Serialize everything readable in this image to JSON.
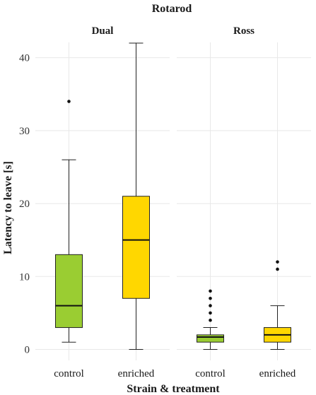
{
  "chart_data": {
    "type": "boxplot",
    "title": "Rotarod",
    "xlabel": "Strain & treatment",
    "ylabel": "Latency to leave [s]",
    "ylim": [
      -1.5,
      45
    ],
    "yticks": [
      0,
      10,
      20,
      30,
      40
    ],
    "grid": true,
    "panels": [
      {
        "name": "Dual",
        "categories": [
          "control",
          "enriched"
        ],
        "boxes": [
          {
            "category": "control",
            "min": 1,
            "q1": 3,
            "median": 6,
            "q3": 13,
            "max": 26,
            "outliers": [
              34
            ],
            "color": "#9ACD32"
          },
          {
            "category": "enriched",
            "min": 0,
            "q1": 7,
            "median": 15,
            "q3": 21,
            "max": 42,
            "outliers": [],
            "color": "#FFD700"
          }
        ]
      },
      {
        "name": "Ross",
        "categories": [
          "control",
          "enriched"
        ],
        "boxes": [
          {
            "category": "control",
            "min": 0,
            "q1": 1,
            "median": 1.7,
            "q3": 2,
            "max": 3,
            "outliers": [
              4,
              5,
              6,
              7,
              8
            ],
            "color": "#9ACD32"
          },
          {
            "category": "enriched",
            "min": 0,
            "q1": 1,
            "median": 2,
            "q3": 3,
            "max": 6,
            "outliers": [
              11,
              12
            ],
            "color": "#FFD700"
          }
        ]
      }
    ]
  }
}
